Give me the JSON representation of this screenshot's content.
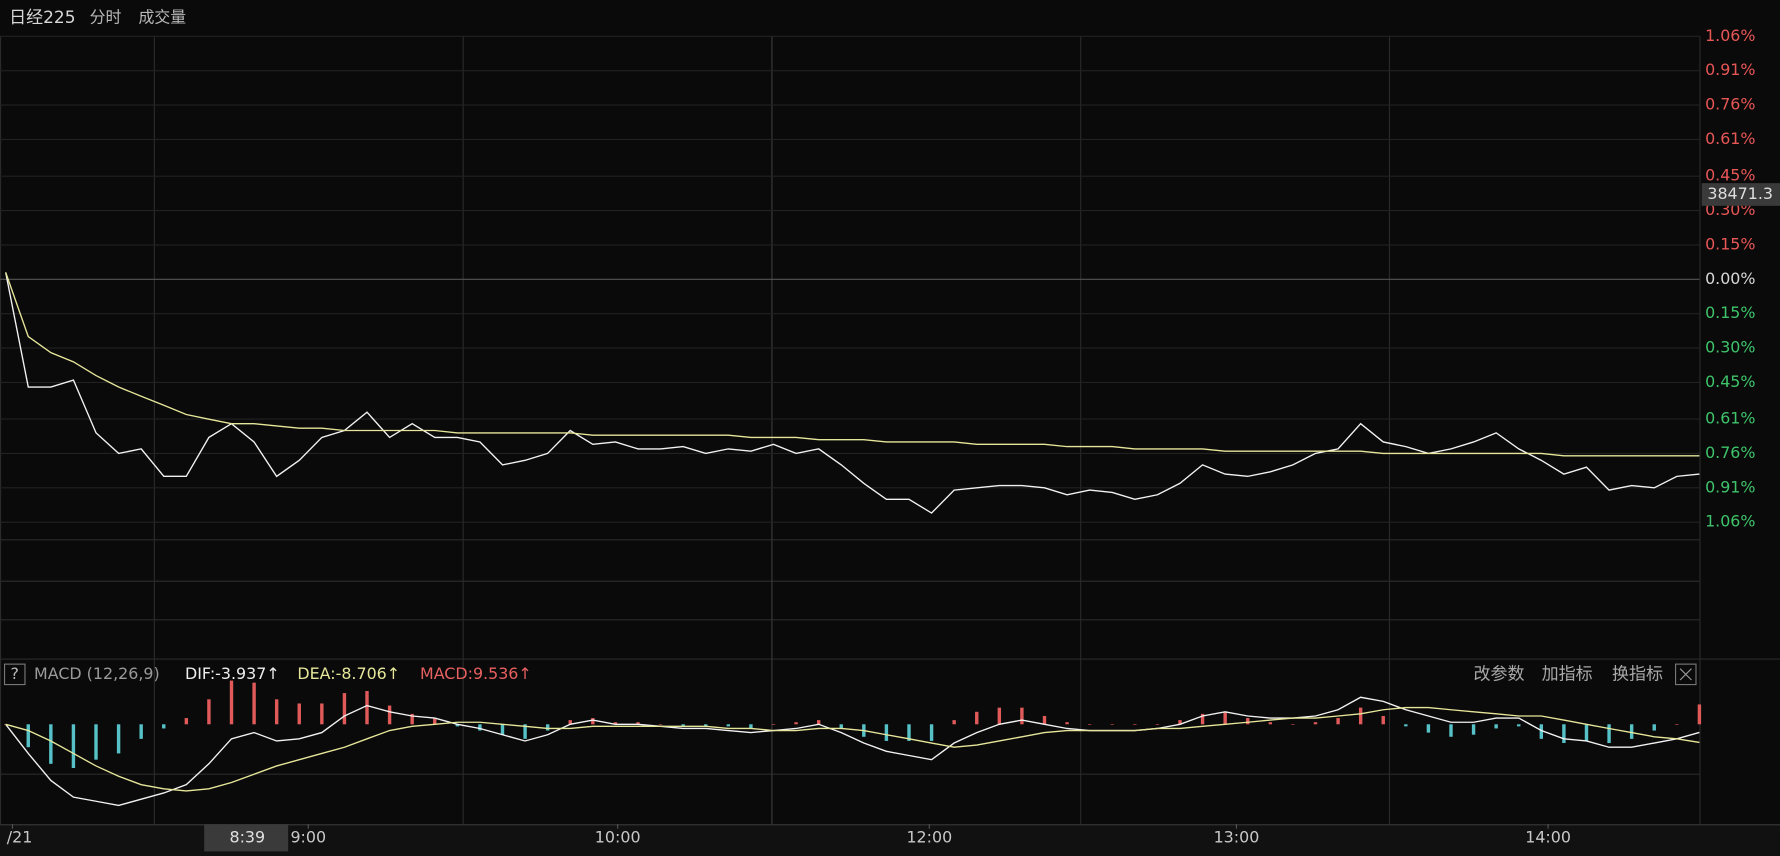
{
  "header": {
    "symbol": "日经225",
    "period": "分时",
    "indicator": "成交量"
  },
  "macd_header": {
    "help": "?",
    "name": "MACD (12,26,9)",
    "legend_labels": [
      "DIF:-3.937↑",
      "DEA:-8.706↑",
      "MACD:9.536↑"
    ]
  },
  "buttons": [
    "改参数",
    "加指标",
    "换指标"
  ],
  "chart_data": [
    {
      "type": "line",
      "xlim": [
        0,
        75
      ],
      "ylim": [
        -1.06,
        1.06
      ],
      "yticks": [
        {
          "value": 1.06,
          "label": "1.06%"
        },
        {
          "value": 0.91,
          "label": "0.91%"
        },
        {
          "value": 0.76,
          "label": "0.76%"
        },
        {
          "value": 0.61,
          "label": "0.61%"
        },
        {
          "value": 0.45,
          "label": "0.45%"
        },
        {
          "value": 0.3,
          "label": "0.30%"
        },
        {
          "value": 0.15,
          "label": "0.15%"
        },
        {
          "value": 0,
          "label": "0.00%"
        },
        {
          "value": -0.15,
          "label": "0.15%"
        },
        {
          "value": -0.3,
          "label": "0.30%"
        },
        {
          "value": -0.45,
          "label": "0.45%"
        },
        {
          "value": -0.61,
          "label": "0.61%"
        },
        {
          "value": -0.76,
          "label": "0.76%"
        },
        {
          "value": -0.91,
          "label": "0.91%"
        },
        {
          "value": -1.06,
          "label": "1.06%"
        }
      ],
      "price_tag": {
        "value": 0.37,
        "label": "38471.3"
      },
      "grid": true,
      "series": [
        {
          "color": "#f2f2f2",
          "values": [
            0.03,
            -0.47,
            -0.47,
            -0.44,
            -0.67,
            -0.76,
            -0.74,
            -0.86,
            -0.86,
            -0.69,
            -0.63,
            -0.71,
            -0.86,
            -0.79,
            -0.69,
            -0.66,
            -0.58,
            -0.69,
            -0.63,
            -0.69,
            -0.69,
            -0.71,
            -0.81,
            -0.79,
            -0.76,
            -0.66,
            -0.72,
            -0.71,
            -0.74,
            -0.74,
            -0.73,
            -0.76,
            -0.74,
            -0.75,
            -0.72,
            -0.76,
            -0.74,
            -0.81,
            -0.89,
            -0.96,
            -0.96,
            -1.02,
            -0.92,
            -0.91,
            -0.9,
            -0.9,
            -0.91,
            -0.94,
            -0.92,
            -0.93,
            -0.96,
            -0.94,
            -0.89,
            -0.81,
            -0.85,
            -0.86,
            -0.84,
            -0.81,
            -0.76,
            -0.74,
            -0.63,
            -0.71,
            -0.73,
            -0.76,
            -0.74,
            -0.71,
            -0.67,
            -0.74,
            -0.79,
            -0.85,
            -0.82,
            -0.92,
            -0.9,
            -0.91,
            -0.86,
            -0.85
          ]
        },
        {
          "color": "#e6e69a",
          "values": [
            0.03,
            -0.25,
            -0.32,
            -0.36,
            -0.42,
            -0.47,
            -0.51,
            -0.55,
            -0.59,
            -0.61,
            -0.63,
            -0.63,
            -0.64,
            -0.65,
            -0.65,
            -0.66,
            -0.66,
            -0.66,
            -0.66,
            -0.66,
            -0.67,
            -0.67,
            -0.67,
            -0.67,
            -0.67,
            -0.67,
            -0.68,
            -0.68,
            -0.68,
            -0.68,
            -0.68,
            -0.68,
            -0.68,
            -0.69,
            -0.69,
            -0.69,
            -0.7,
            -0.7,
            -0.7,
            -0.71,
            -0.71,
            -0.71,
            -0.71,
            -0.72,
            -0.72,
            -0.72,
            -0.72,
            -0.73,
            -0.73,
            -0.73,
            -0.74,
            -0.74,
            -0.74,
            -0.74,
            -0.75,
            -0.75,
            -0.75,
            -0.75,
            -0.75,
            -0.75,
            -0.75,
            -0.76,
            -0.76,
            -0.76,
            -0.76,
            -0.76,
            -0.76,
            -0.76,
            -0.76,
            -0.77,
            -0.77,
            -0.77,
            -0.77,
            -0.77,
            -0.77,
            -0.77
          ]
        }
      ]
    },
    {
      "type": "macd",
      "xlim": [
        0,
        75
      ],
      "ylim": [
        -48,
        18
      ],
      "xticks": [
        {
          "value": 0.3,
          "label": "/21"
        },
        {
          "value": 13.4,
          "label": "9:00"
        },
        {
          "value": 27.1,
          "label": "10:00"
        },
        {
          "value": 40.9,
          "label": "12:00"
        },
        {
          "value": 54.5,
          "label": "13:00"
        },
        {
          "value": 68.3,
          "label": "14:00"
        }
      ],
      "cursor": {
        "value": 10.7,
        "label": "8:39"
      },
      "series": [
        {
          "name": "MACD",
          "type": "bar",
          "color": "#e05a5a",
          "negative_color": "#56c2c8",
          "values": [
            0,
            -11,
            -19,
            -21,
            -17,
            -14,
            -7,
            -2,
            3,
            12,
            21,
            20,
            12,
            10,
            10,
            15,
            16,
            9,
            5,
            3,
            -1,
            -3,
            -5,
            -7,
            -3,
            2,
            3,
            1,
            1,
            0,
            -1,
            -1,
            -1,
            -2,
            0,
            1,
            2,
            -2,
            -6,
            -8,
            -8,
            -8,
            2,
            6,
            8,
            8,
            4,
            1,
            0,
            0,
            0,
            0,
            2,
            5,
            6,
            3,
            1,
            0,
            1,
            3,
            8,
            4,
            -1,
            -4,
            -6,
            -5,
            -2,
            -1,
            -7,
            -9,
            -8,
            -9,
            -7,
            -3,
            0,
            9.536
          ]
        },
        {
          "name": "DIF",
          "type": "line",
          "color": "#f2f2f2",
          "values": [
            0,
            -14,
            -27,
            -35,
            -37,
            -39,
            -36,
            -33,
            -29,
            -19,
            -7,
            -4,
            -8,
            -7,
            -4,
            4,
            9,
            6,
            4,
            3,
            0,
            -2,
            -5,
            -8,
            -5,
            0,
            2,
            0,
            0,
            -1,
            -2,
            -2,
            -3,
            -4,
            -3,
            -2,
            0,
            -4,
            -9,
            -13,
            -15,
            -17,
            -9,
            -4,
            0,
            2,
            0,
            -2,
            -3,
            -3,
            -3,
            -2,
            0,
            4,
            6,
            4,
            3,
            3,
            4,
            7,
            13,
            11,
            7,
            4,
            1,
            1,
            3,
            3,
            -3,
            -7,
            -8,
            -11,
            -11,
            -9,
            -7,
            -3.937
          ]
        },
        {
          "name": "DEA",
          "type": "line",
          "color": "#e6e69a",
          "values": [
            0,
            -3,
            -8,
            -14,
            -20,
            -25,
            -29,
            -31,
            -32,
            -31,
            -28,
            -24,
            -20,
            -17,
            -14,
            -11,
            -7,
            -3,
            -1,
            0,
            1,
            1,
            0,
            -1,
            -2,
            -2,
            -1,
            -1,
            -1,
            -1,
            -1,
            -1,
            -2,
            -2,
            -3,
            -3,
            -2,
            -2,
            -3,
            -5,
            -7,
            -9,
            -11,
            -10,
            -8,
            -6,
            -4,
            -3,
            -3,
            -3,
            -3,
            -2,
            -2,
            -1,
            0,
            1,
            2,
            3,
            3,
            4,
            5,
            7,
            8,
            8,
            7,
            6,
            5,
            4,
            4,
            2,
            0,
            -2,
            -4,
            -6,
            -7,
            -8.706
          ]
        }
      ]
    }
  ]
}
